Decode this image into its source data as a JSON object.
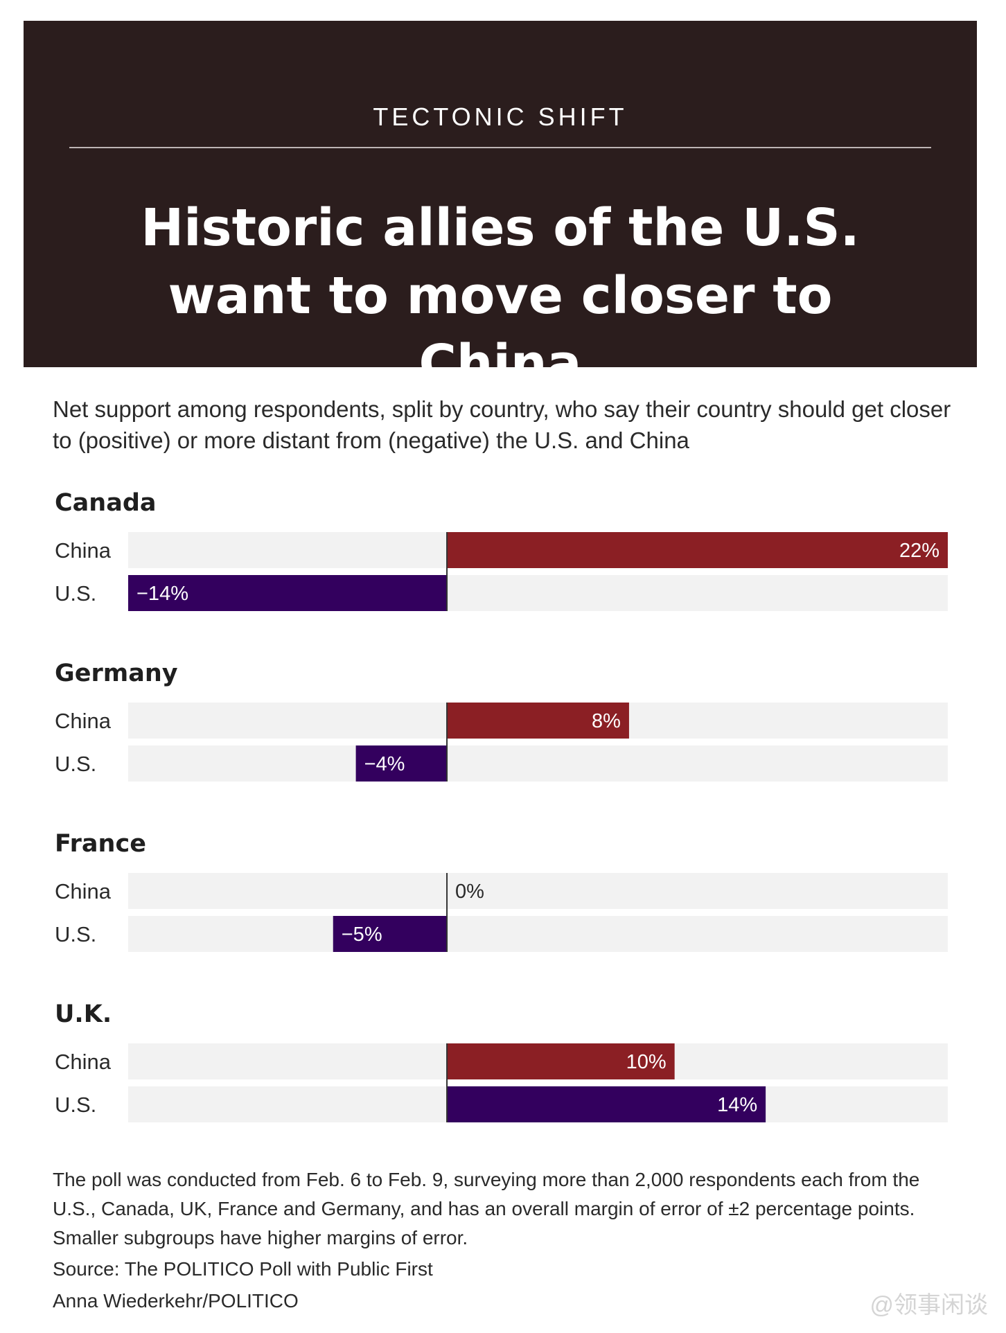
{
  "header": {
    "kicker": "TECTONIC SHIFT",
    "title": "Historic allies of the U.S. want to move closer to China"
  },
  "subtitle": "Net support among respondents, split by country, who say their country should get closer to (positive) or more distant from (negative) the U.S. and China",
  "chart_data": {
    "type": "bar",
    "orientation": "horizontal-diverging",
    "xlim": [
      -14,
      22
    ],
    "unit": "%",
    "groups": [
      {
        "name": "Canada",
        "rows": [
          {
            "label": "China",
            "value": 22,
            "value_label": "22%"
          },
          {
            "label": "U.S.",
            "value": -14,
            "value_label": "−14%"
          }
        ]
      },
      {
        "name": "Germany",
        "rows": [
          {
            "label": "China",
            "value": 8,
            "value_label": "8%"
          },
          {
            "label": "U.S.",
            "value": -4,
            "value_label": "−4%"
          }
        ]
      },
      {
        "name": "France",
        "rows": [
          {
            "label": "China",
            "value": 0,
            "value_label": "0%"
          },
          {
            "label": "U.S.",
            "value": -5,
            "value_label": "−5%"
          }
        ]
      },
      {
        "name": "U.K.",
        "rows": [
          {
            "label": "China",
            "value": 10,
            "value_label": "10%"
          },
          {
            "label": "U.S.",
            "value": 14,
            "value_label": "14%"
          }
        ]
      }
    ],
    "colors": {
      "China": "#8b1f24",
      "U.S.": "#33005e",
      "track": "#f2f2f2",
      "zero_line": "#333333"
    }
  },
  "footer": {
    "notes": "The poll was conducted from Feb. 6 to Feb. 9, surveying more than 2,000 respondents each from the U.S., Canada, UK, France and Germany, and has an overall margin of error of ±2 percentage points. Smaller subgroups have higher margins of error.",
    "source": "Source: The POLITICO Poll with Public First",
    "credit": "Anna Wiederkehr/POLITICO",
    "watermark": "@领事闲谈"
  }
}
